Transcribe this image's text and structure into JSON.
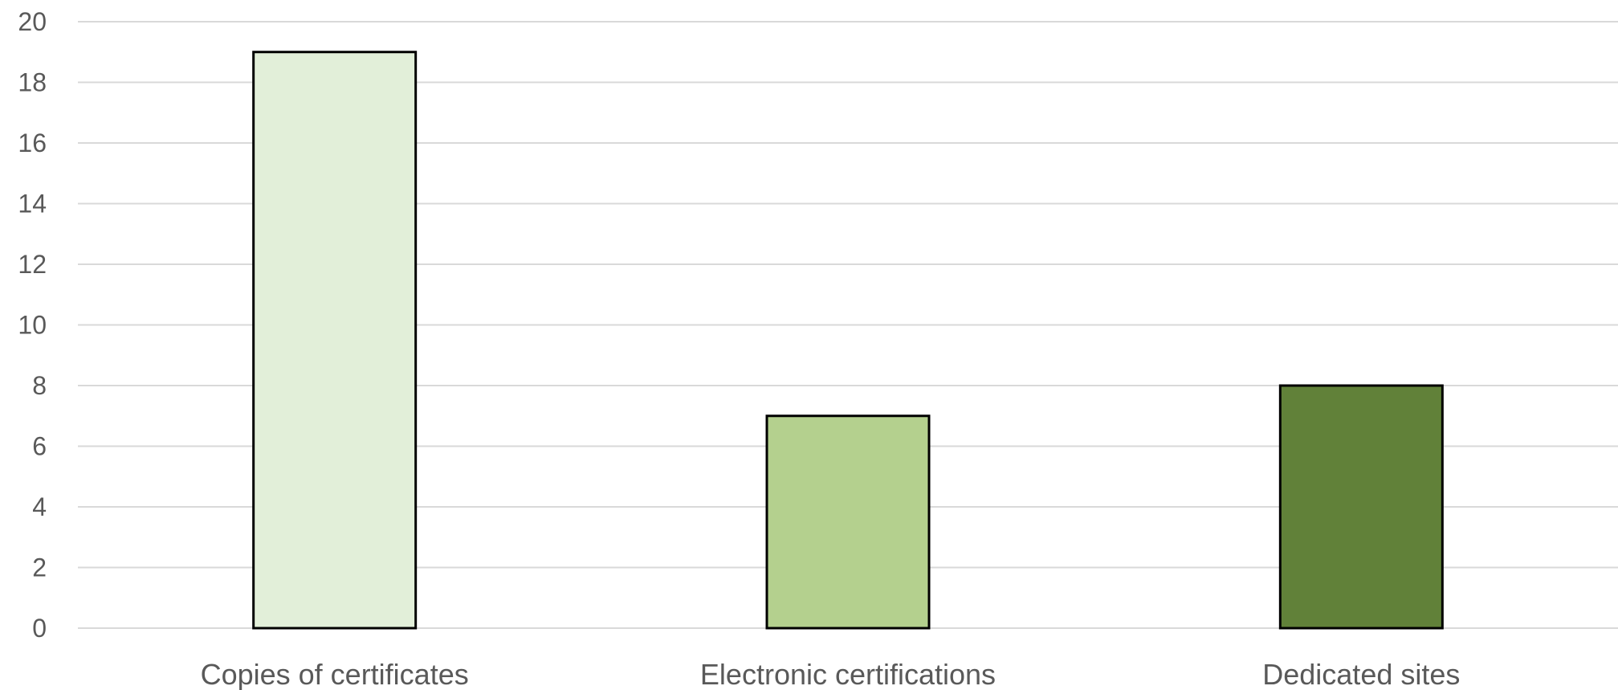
{
  "chart_data": {
    "type": "bar",
    "categories": [
      "Copies of certificates",
      "Electronic certifications",
      "Dedicated sites"
    ],
    "values": [
      19,
      7,
      8
    ],
    "colors": [
      "#e2efd9",
      "#b4d08e",
      "#618139"
    ],
    "ylim": [
      0,
      20
    ],
    "yticks": [
      0,
      2,
      4,
      6,
      8,
      10,
      12,
      14,
      16,
      18,
      20
    ],
    "title": "",
    "xlabel": "",
    "ylabel": "",
    "grid": true,
    "legend": "none"
  }
}
